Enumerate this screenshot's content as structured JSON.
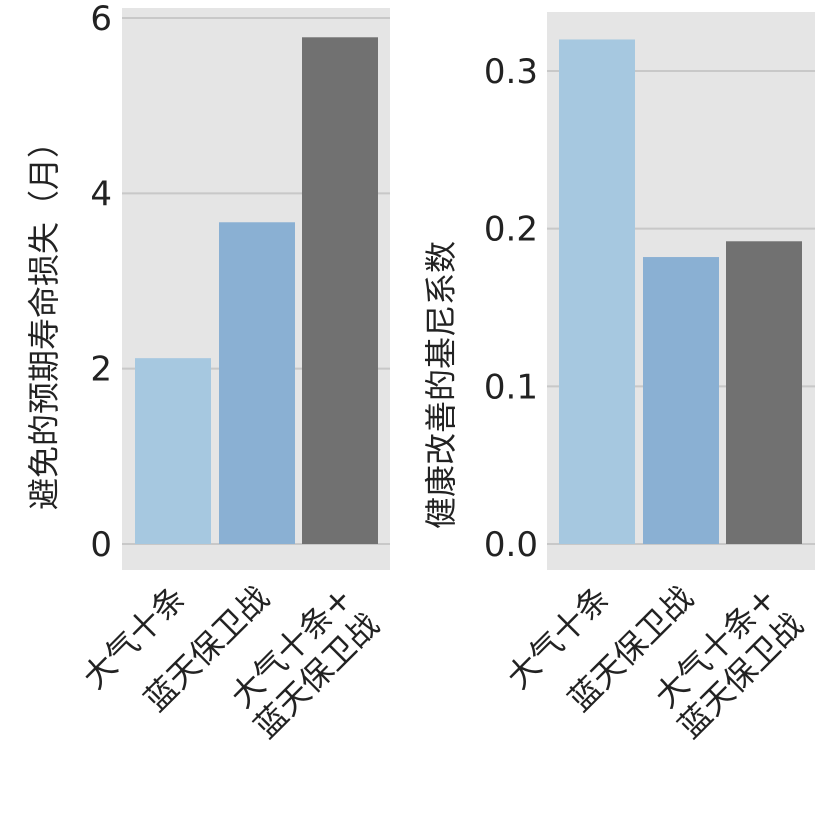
{
  "chart_data": [
    {
      "type": "bar",
      "categories": [
        "大气十条",
        "蓝天保卫战",
        "大气十条+\n蓝天保卫战"
      ],
      "values": [
        2.12,
        3.67,
        5.78
      ],
      "ylabel": "避免的预期寿命损失（月）",
      "ylim": [
        -0.3,
        6.05
      ],
      "yticks": [
        0,
        2,
        4,
        6
      ],
      "ytick_labels": [
        "0",
        "2",
        "4",
        "6"
      ],
      "grid": true,
      "colors": [
        "#a6c8e0",
        "#8ab0d3",
        "#717171"
      ]
    },
    {
      "type": "bar",
      "categories": [
        "大气十条",
        "蓝天保卫战",
        "大气十条+\n蓝天保卫战"
      ],
      "values": [
        0.32,
        0.182,
        0.192
      ],
      "ylabel": "健康改善的基尼系数",
      "ylim": [
        -0.016,
        0.336
      ],
      "yticks": [
        0.0,
        0.1,
        0.2,
        0.3
      ],
      "ytick_labels": [
        "0.0",
        "0.1",
        "0.2",
        "0.3"
      ],
      "grid": true,
      "colors": [
        "#a6c8e0",
        "#8ab0d3",
        "#717171"
      ]
    }
  ],
  "style": {
    "panel_background": "#e5e5e5",
    "grid_color": "#c8c8c8"
  }
}
